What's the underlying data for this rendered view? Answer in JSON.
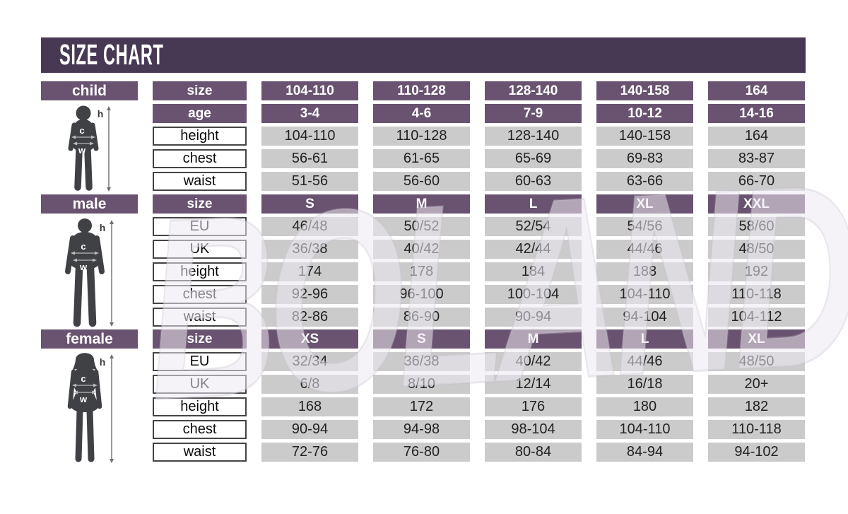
{
  "title": "SIZE CHART",
  "watermark": "BOLAND",
  "figure_labels": {
    "height": "h",
    "chest": "c",
    "waist": "w"
  },
  "palette": {
    "title_bar": "#473954",
    "header_purple": "#6a5370",
    "cell_gray": "#cbcbcb",
    "silhouette": "#3f4145",
    "page_bg": "#ffffff"
  },
  "sections": [
    {
      "id": "child",
      "label": "child",
      "rows": [
        {
          "label": "size",
          "type": "header",
          "values": [
            "104-110",
            "110-128",
            "128-140",
            "140-158",
            "164"
          ]
        },
        {
          "label": "age",
          "type": "header",
          "values": [
            "3-4",
            "4-6",
            "7-9",
            "10-12",
            "14-16"
          ]
        },
        {
          "label": "height",
          "type": "data",
          "values": [
            "104-110",
            "110-128",
            "128-140",
            "140-158",
            "164"
          ]
        },
        {
          "label": "chest",
          "type": "data",
          "values": [
            "56-61",
            "61-65",
            "65-69",
            "69-83",
            "83-87"
          ]
        },
        {
          "label": "waist",
          "type": "data",
          "values": [
            "51-56",
            "56-60",
            "60-63",
            "63-66",
            "66-70"
          ]
        }
      ]
    },
    {
      "id": "male",
      "label": "male",
      "rows": [
        {
          "label": "size",
          "type": "header",
          "values": [
            "S",
            "M",
            "L",
            "XL",
            "XXL"
          ]
        },
        {
          "label": "EU",
          "type": "data",
          "values": [
            "46/48",
            "50/52",
            "52/54",
            "54/56",
            "58/60"
          ]
        },
        {
          "label": "UK",
          "type": "data",
          "values": [
            "36/38",
            "40/42",
            "42/44",
            "44/46",
            "48/50"
          ]
        },
        {
          "label": "height",
          "type": "data",
          "values": [
            "174",
            "178",
            "184",
            "188",
            "192"
          ]
        },
        {
          "label": "chest",
          "type": "data",
          "values": [
            "92-96",
            "96-100",
            "100-104",
            "104-110",
            "110-118"
          ]
        },
        {
          "label": "waist",
          "type": "data",
          "values": [
            "82-86",
            "86-90",
            "90-94",
            "94-104",
            "104-112"
          ]
        }
      ]
    },
    {
      "id": "female",
      "label": "female",
      "rows": [
        {
          "label": "size",
          "type": "header",
          "values": [
            "XS",
            "S",
            "M",
            "L",
            "XL"
          ]
        },
        {
          "label": "EU",
          "type": "data",
          "values": [
            "32/34",
            "36/38",
            "40/42",
            "44/46",
            "48/50"
          ]
        },
        {
          "label": "UK",
          "type": "data",
          "values": [
            "6/8",
            "8/10",
            "12/14",
            "16/18",
            "20+"
          ]
        },
        {
          "label": "height",
          "type": "data",
          "values": [
            "168",
            "172",
            "176",
            "180",
            "182"
          ]
        },
        {
          "label": "chest",
          "type": "data",
          "values": [
            "90-94",
            "94-98",
            "98-104",
            "104-110",
            "110-118"
          ]
        },
        {
          "label": "waist",
          "type": "data",
          "values": [
            "72-76",
            "76-80",
            "80-84",
            "84-94",
            "94-102"
          ]
        }
      ]
    }
  ],
  "chart_data": [
    {
      "type": "table",
      "title": "child",
      "columns": [
        "size",
        "104-110",
        "110-128",
        "128-140",
        "140-158",
        "164"
      ],
      "rows": [
        [
          "age",
          "3-4",
          "4-6",
          "7-9",
          "10-12",
          "14-16"
        ],
        [
          "height",
          "104-110",
          "110-128",
          "128-140",
          "140-158",
          "164"
        ],
        [
          "chest",
          "56-61",
          "61-65",
          "65-69",
          "69-83",
          "83-87"
        ],
        [
          "waist",
          "51-56",
          "56-60",
          "60-63",
          "63-66",
          "66-70"
        ]
      ]
    },
    {
      "type": "table",
      "title": "male",
      "columns": [
        "size",
        "S",
        "M",
        "L",
        "XL",
        "XXL"
      ],
      "rows": [
        [
          "EU",
          "46/48",
          "50/52",
          "52/54",
          "54/56",
          "58/60"
        ],
        [
          "UK",
          "36/38",
          "40/42",
          "42/44",
          "44/46",
          "48/50"
        ],
        [
          "height",
          "174",
          "178",
          "184",
          "188",
          "192"
        ],
        [
          "chest",
          "92-96",
          "96-100",
          "100-104",
          "104-110",
          "110-118"
        ],
        [
          "waist",
          "82-86",
          "86-90",
          "90-94",
          "94-104",
          "104-112"
        ]
      ]
    },
    {
      "type": "table",
      "title": "female",
      "columns": [
        "size",
        "XS",
        "S",
        "M",
        "L",
        "XL"
      ],
      "rows": [
        [
          "EU",
          "32/34",
          "36/38",
          "40/42",
          "44/46",
          "48/50"
        ],
        [
          "UK",
          "6/8",
          "8/10",
          "12/14",
          "16/18",
          "20+"
        ],
        [
          "height",
          "168",
          "172",
          "176",
          "180",
          "182"
        ],
        [
          "chest",
          "90-94",
          "94-98",
          "98-104",
          "104-110",
          "110-118"
        ],
        [
          "waist",
          "72-76",
          "76-80",
          "80-84",
          "84-94",
          "94-102"
        ]
      ]
    }
  ]
}
